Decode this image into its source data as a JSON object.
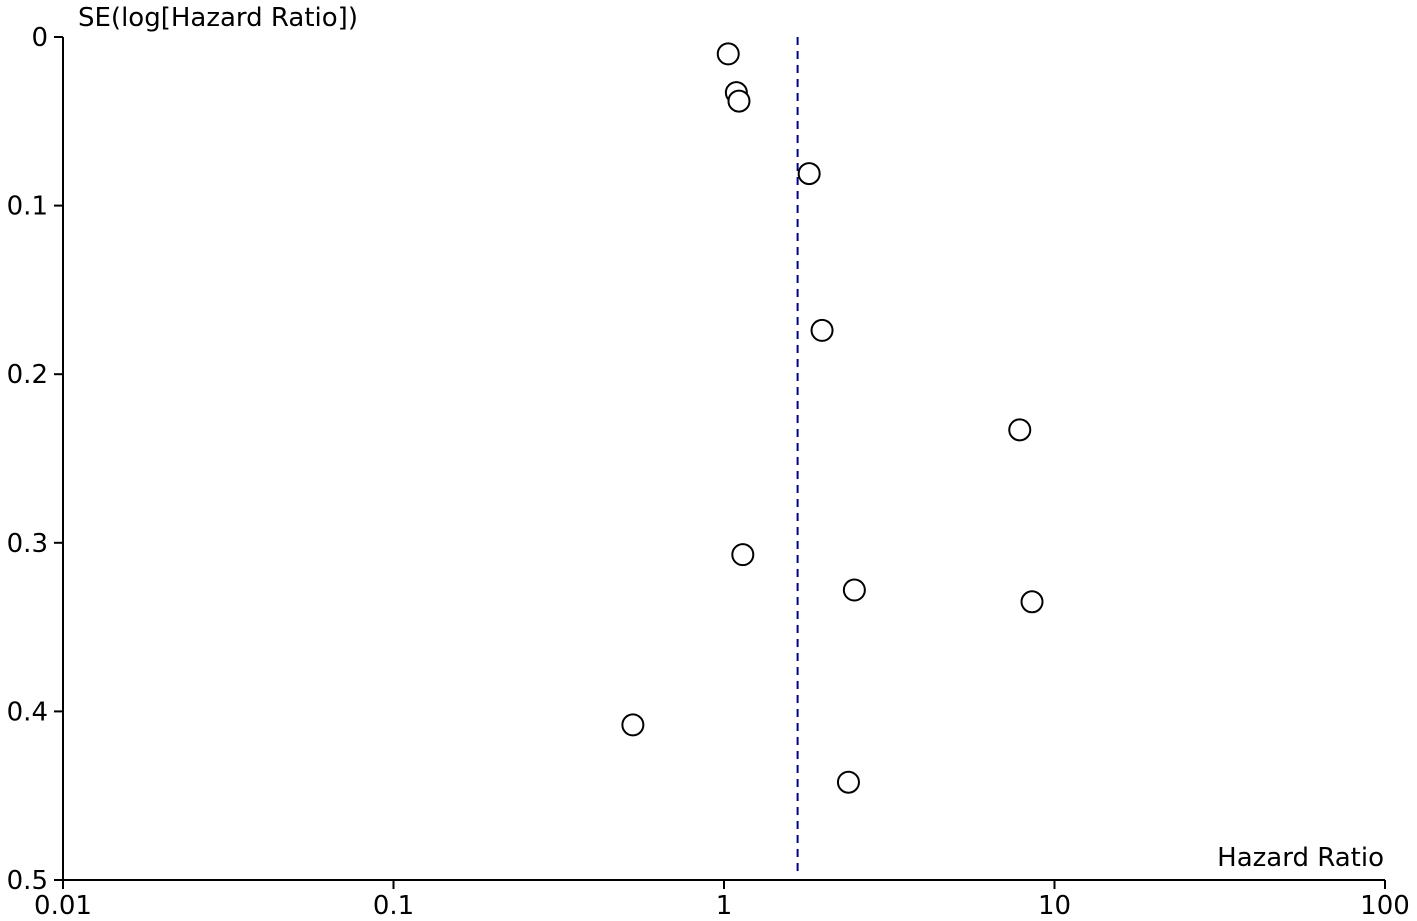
{
  "chart_data": {
    "type": "scatter",
    "title": "",
    "xlabel": "Hazard Ratio",
    "ylabel": "SE(log[Hazard Ratio])",
    "x_scale": "log",
    "xlim": [
      0.01,
      100
    ],
    "ylim": [
      0,
      0.5
    ],
    "y_inverted": true,
    "x_ticks": [
      {
        "value": 0.01,
        "label": "0.01"
      },
      {
        "value": 0.1,
        "label": "0.1"
      },
      {
        "value": 1,
        "label": "1"
      },
      {
        "value": 10,
        "label": "10"
      },
      {
        "value": 100,
        "label": "100"
      }
    ],
    "y_ticks": [
      {
        "value": 0,
        "label": "0"
      },
      {
        "value": 0.1,
        "label": "0.1"
      },
      {
        "value": 0.2,
        "label": "0.2"
      },
      {
        "value": 0.3,
        "label": "0.3"
      },
      {
        "value": 0.4,
        "label": "0.4"
      },
      {
        "value": 0.5,
        "label": "0.5"
      }
    ],
    "reference_line": {
      "x": 1.67,
      "style": "dashed",
      "color": "#00008B"
    },
    "points": [
      {
        "x": 1.03,
        "y": 0.01
      },
      {
        "x": 1.09,
        "y": 0.033
      },
      {
        "x": 1.11,
        "y": 0.038
      },
      {
        "x": 1.81,
        "y": 0.081
      },
      {
        "x": 1.98,
        "y": 0.174
      },
      {
        "x": 7.85,
        "y": 0.233
      },
      {
        "x": 1.14,
        "y": 0.307
      },
      {
        "x": 2.48,
        "y": 0.328
      },
      {
        "x": 8.55,
        "y": 0.335
      },
      {
        "x": 0.53,
        "y": 0.408
      },
      {
        "x": 2.38,
        "y": 0.442
      }
    ],
    "grid": false,
    "colors": {
      "axis": "#000000",
      "marker_stroke": "#000000",
      "marker_fill": "#ffffff"
    }
  }
}
